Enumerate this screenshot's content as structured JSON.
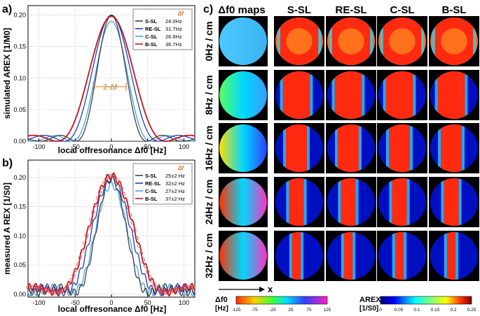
{
  "panel_labels": {
    "a": "a)",
    "b": "b)",
    "c": "c)"
  },
  "colors": {
    "S-SL": "#404040",
    "RE-SL": "#1f3fbf",
    "C-SL": "#3fa6e8",
    "B-SL": "#c0161f",
    "accent": "#c87a2a"
  },
  "chart_data": [
    {
      "type": "line",
      "id": "a",
      "xlabel": "local offresonance Δf0 [Hz]",
      "ylabel": "simulated AREX [1/M0]",
      "xlim": [
        -115,
        115
      ],
      "ylim": [
        0,
        0.215
      ],
      "xticks": [
        "-100",
        "-50",
        "0",
        "50",
        "100"
      ],
      "xtick_values": [
        -100,
        -50,
        0,
        50,
        100
      ],
      "yticks": [
        "0.00",
        "0.05",
        "0.10",
        "0.15",
        "0.20"
      ],
      "ytick_values": [
        0,
        0.05,
        0.1,
        0.15,
        0.2
      ],
      "legend_title": "Δf",
      "legend": [
        {
          "name": "S-SL",
          "value": "24.0Hz"
        },
        {
          "name": "RE-SL",
          "value": "31.7Hz"
        },
        {
          "name": "C-SL",
          "value": "26.6Hz"
        },
        {
          "name": "B-SL",
          "value": "36.7Hz"
        }
      ],
      "annotation": "2·Δf",
      "series": [
        {
          "name": "S-SL",
          "peak": 0.2,
          "halfwidth": 24.0
        },
        {
          "name": "RE-SL",
          "peak": 0.2,
          "halfwidth": 31.7
        },
        {
          "name": "C-SL",
          "peak": 0.19,
          "halfwidth": 26.6
        },
        {
          "name": "B-SL",
          "peak": 0.198,
          "halfwidth": 36.7
        }
      ]
    },
    {
      "type": "line",
      "id": "b",
      "xlabel": "local offresonance Δf0 [Hz]",
      "ylabel": "measured A REX [1/S0]",
      "xlim": [
        -115,
        115
      ],
      "ylim": [
        -0.005,
        0.23
      ],
      "xticks": [
        "-100",
        "-50",
        "0",
        "50",
        "100"
      ],
      "xtick_values": [
        -100,
        -50,
        0,
        50,
        100
      ],
      "yticks": [
        "0.00",
        "0.05",
        "0.10",
        "0.15",
        "0.20"
      ],
      "ytick_values": [
        0,
        0.05,
        0.1,
        0.15,
        0.2
      ],
      "legend_title": "Δf",
      "legend": [
        {
          "name": "S-SL",
          "value": "25±2 Hz"
        },
        {
          "name": "RE-SL",
          "value": "32±2 Hz"
        },
        {
          "name": "C-SL",
          "value": "27±2 Hz"
        },
        {
          "name": "B-SL",
          "value": "37±2 Hz"
        }
      ],
      "series": [
        {
          "name": "S-SL",
          "peak": 0.195,
          "halfwidth": 25
        },
        {
          "name": "RE-SL",
          "peak": 0.195,
          "halfwidth": 32
        },
        {
          "name": "C-SL",
          "peak": 0.185,
          "halfwidth": 27
        },
        {
          "name": "B-SL",
          "peak": 0.2,
          "halfwidth": 37
        }
      ]
    },
    {
      "type": "heatmap",
      "id": "c",
      "col_headers": [
        "Δf0 maps",
        "S-SL",
        "RE-SL",
        "C-SL",
        "B-SL"
      ],
      "row_labels": [
        "0Hz / cm",
        "8Hz / cm",
        "16Hz / cm",
        "24Hz / cm",
        "32Hz / cm"
      ],
      "gradients_hz_per_cm": [
        0,
        8,
        16,
        24,
        32
      ],
      "x_axis_label": "x",
      "colorbar_f0": {
        "label": "Δf0",
        "unit": "[Hz]",
        "ticks": [
          "-125",
          "-75",
          "-25",
          "25",
          "75",
          "125"
        ],
        "tick_values": [
          -125,
          -75,
          -25,
          25,
          75,
          125
        ]
      },
      "colorbar_arex": {
        "label": "AREX",
        "unit": "[1/S0]",
        "ticks": [
          "0",
          "0.05",
          "0.1",
          "0.15",
          "0.2",
          "0.25"
        ],
        "tick_values": [
          0,
          0.05,
          0.1,
          0.15,
          0.2,
          0.25
        ]
      }
    }
  ]
}
